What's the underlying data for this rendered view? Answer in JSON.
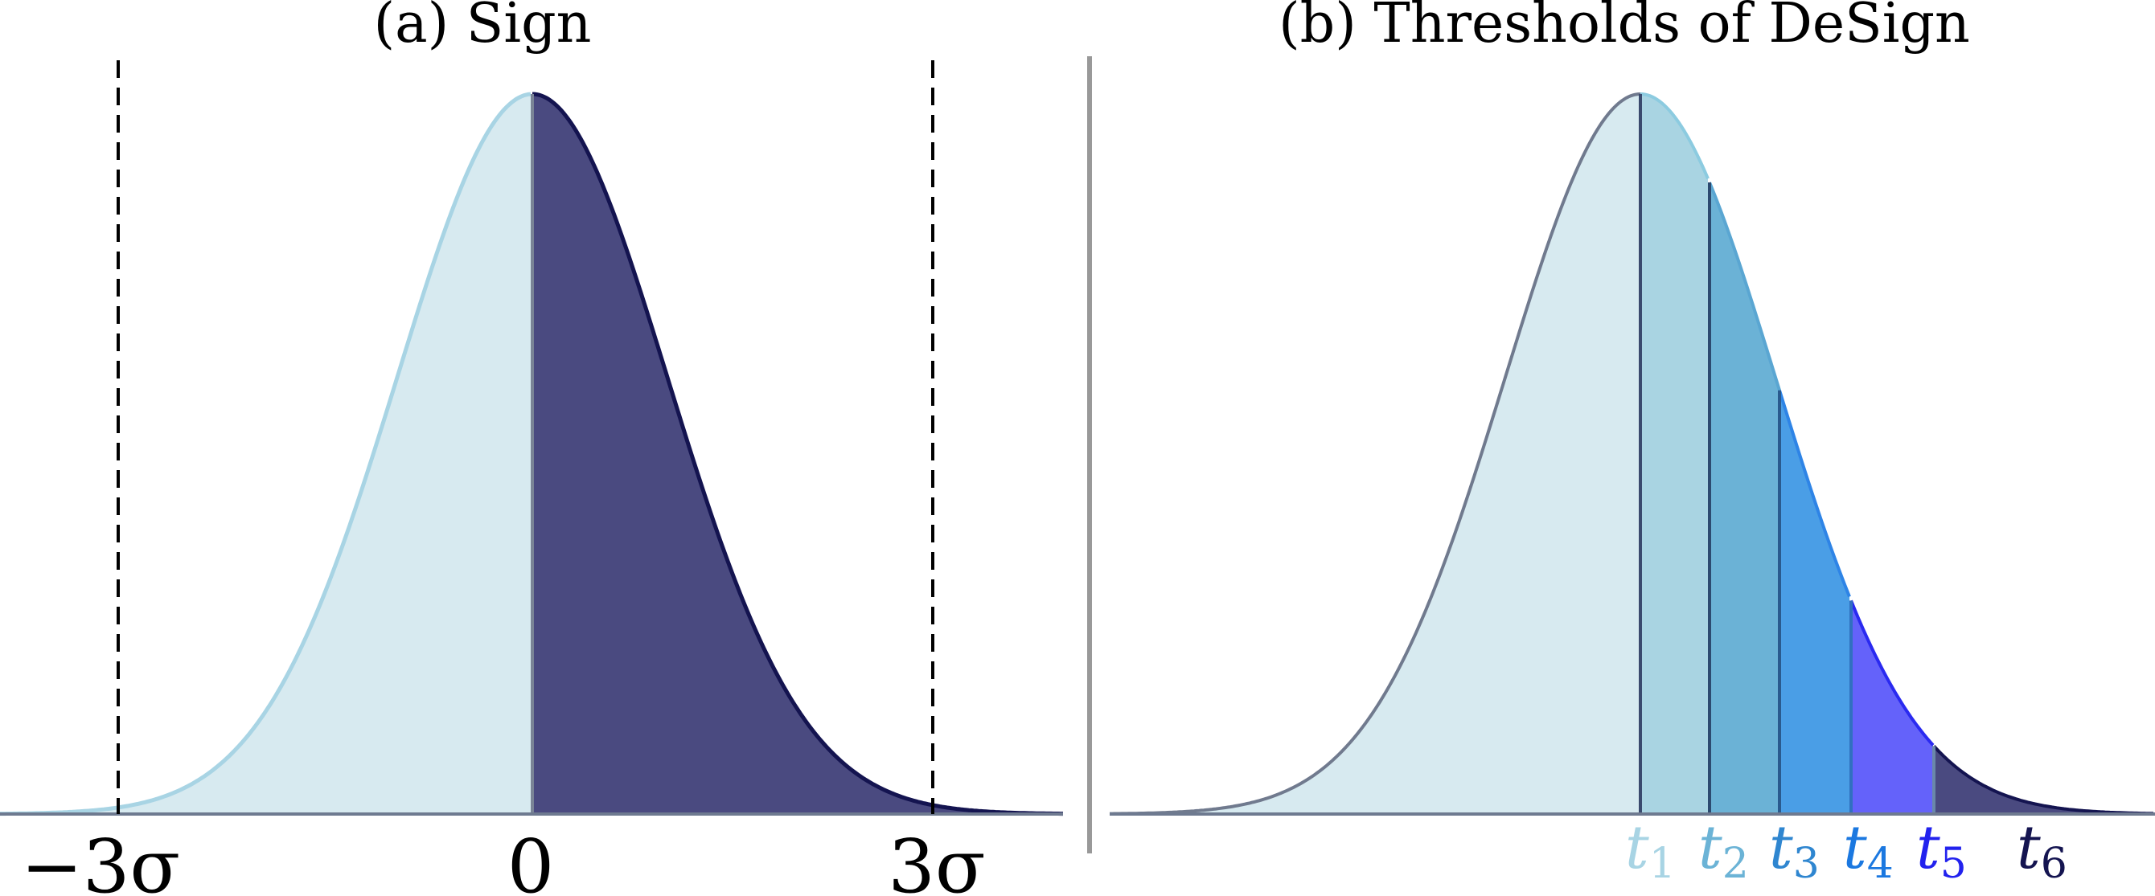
{
  "panel_a": {
    "title": "(a) Sign",
    "ticks": [
      "−3σ",
      "0",
      "3σ"
    ],
    "colors": {
      "negative": "#d7eaf0",
      "positive": "#4a4a80",
      "negative_curve": "#a8d4e4",
      "positive_curve": "#141450"
    }
  },
  "panel_b": {
    "title": "(b) Thresholds of DeSign",
    "thresholds": [
      {
        "letter": "t",
        "sub": "1",
        "color": "#a8d4e4"
      },
      {
        "letter": "t",
        "sub": "2",
        "color": "#6bb3d6"
      },
      {
        "letter": "t",
        "sub": "3",
        "color": "#2f86d0"
      },
      {
        "letter": "t",
        "sub": "4",
        "color": "#1b78e0"
      },
      {
        "letter": "t",
        "sub": "5",
        "color": "#2222ee"
      },
      {
        "letter": "t",
        "sub": "6",
        "color": "#141450"
      }
    ],
    "region_colors": [
      "#d7eaf0",
      "#a9d4e2",
      "#6bb2d6",
      "#4a9ee6",
      "#6462fa",
      "#4a4a80"
    ],
    "curve_colors": [
      "#707a8e",
      "#8ccbe0",
      "#5aa6d2",
      "#2e84e6",
      "#2a2af0",
      "#141450"
    ]
  },
  "divider_color": "#999999"
}
